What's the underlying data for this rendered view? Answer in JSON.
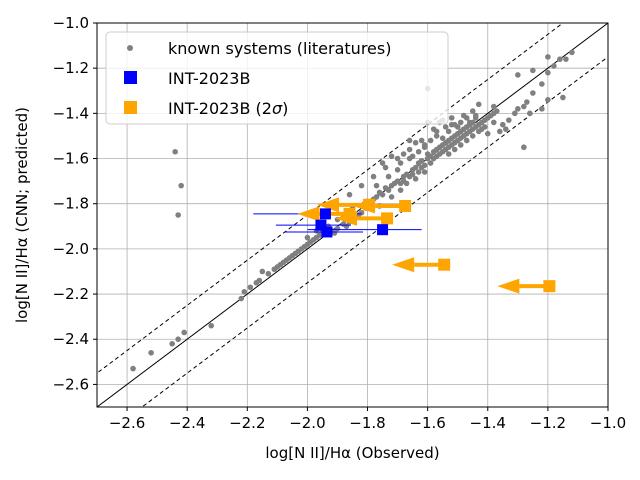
{
  "chart_data": {
    "type": "scatter",
    "xlabel": "log[N II]/Hα (Observed)",
    "ylabel": "log[N II]/Hα (CNN; predicted)",
    "xlim": [
      -2.7,
      -1.0
    ],
    "ylim": [
      -2.7,
      -1.0
    ],
    "xticks": [
      -2.6,
      -2.4,
      -2.2,
      -2.0,
      -1.8,
      -1.6,
      -1.4,
      -1.2,
      -1.0
    ],
    "yticks": [
      -2.6,
      -2.4,
      -2.2,
      -2.0,
      -1.8,
      -1.6,
      -1.4,
      -1.2,
      -1.0
    ],
    "xtick_labels": [
      "−2.6",
      "−2.4",
      "−2.2",
      "−2.0",
      "−1.8",
      "−1.6",
      "−1.4",
      "−1.2",
      "−1.0"
    ],
    "ytick_labels": [
      "−2.6",
      "−2.4",
      "−2.2",
      "−2.0",
      "−1.8",
      "−1.6",
      "−1.4",
      "−1.2",
      "−1.0"
    ],
    "grid": true,
    "legend_position": "top-left",
    "lines": [
      {
        "style": "solid",
        "offset": 0.0,
        "color": "#000000"
      },
      {
        "style": "dashed",
        "offset": 0.15,
        "color": "#000000"
      },
      {
        "style": "dashed",
        "offset": -0.15,
        "color": "#000000"
      }
    ],
    "series": [
      {
        "name": "known systems (literatures)",
        "marker": "dot",
        "color": "#808080",
        "points": [
          [
            -2.58,
            -2.53
          ],
          [
            -2.52,
            -2.46
          ],
          [
            -2.45,
            -2.42
          ],
          [
            -2.43,
            -2.4
          ],
          [
            -2.41,
            -2.37
          ],
          [
            -2.32,
            -2.34
          ],
          [
            -2.22,
            -2.22
          ],
          [
            -2.21,
            -2.19
          ],
          [
            -2.19,
            -2.17
          ],
          [
            -2.17,
            -2.15
          ],
          [
            -2.16,
            -2.14
          ],
          [
            -2.13,
            -2.11
          ],
          [
            -2.11,
            -2.09
          ],
          [
            -2.09,
            -2.07
          ],
          [
            -2.08,
            -2.06
          ],
          [
            -2.07,
            -2.05
          ],
          [
            -2.06,
            -2.04
          ],
          [
            -2.05,
            -2.03
          ],
          [
            -2.04,
            -2.02
          ],
          [
            -2.03,
            -2.01
          ],
          [
            -2.02,
            -2.0
          ],
          [
            -2.01,
            -1.99
          ],
          [
            -2.0,
            -1.98
          ],
          [
            -1.99,
            -1.97
          ],
          [
            -1.98,
            -1.96
          ],
          [
            -1.97,
            -1.95
          ],
          [
            -1.96,
            -1.94
          ],
          [
            -1.95,
            -1.93
          ],
          [
            -1.94,
            -1.93
          ],
          [
            -1.92,
            -1.92
          ],
          [
            -1.9,
            -1.91
          ],
          [
            -1.88,
            -1.89
          ],
          [
            -1.86,
            -1.88
          ],
          [
            -1.84,
            -1.86
          ],
          [
            -1.82,
            -1.84
          ],
          [
            -1.8,
            -1.82
          ],
          [
            -1.79,
            -1.79
          ],
          [
            -1.78,
            -1.78
          ],
          [
            -1.77,
            -1.77
          ],
          [
            -1.76,
            -1.75
          ],
          [
            -1.75,
            -1.76
          ],
          [
            -1.74,
            -1.73
          ],
          [
            -1.73,
            -1.74
          ],
          [
            -1.72,
            -1.72
          ],
          [
            -1.71,
            -1.71
          ],
          [
            -1.7,
            -1.7
          ],
          [
            -1.69,
            -1.71
          ],
          [
            -1.68,
            -1.68
          ],
          [
            -1.68,
            -1.7
          ],
          [
            -1.67,
            -1.67
          ],
          [
            -1.66,
            -1.68
          ],
          [
            -1.65,
            -1.65
          ],
          [
            -1.65,
            -1.67
          ],
          [
            -1.64,
            -1.64
          ],
          [
            -1.63,
            -1.66
          ],
          [
            -1.63,
            -1.62
          ],
          [
            -1.62,
            -1.64
          ],
          [
            -1.62,
            -1.61
          ],
          [
            -1.61,
            -1.63
          ],
          [
            -1.6,
            -1.6
          ],
          [
            -1.6,
            -1.58
          ],
          [
            -1.59,
            -1.62
          ],
          [
            -1.59,
            -1.59
          ],
          [
            -1.58,
            -1.57
          ],
          [
            -1.58,
            -1.6
          ],
          [
            -1.57,
            -1.56
          ],
          [
            -1.57,
            -1.59
          ],
          [
            -1.56,
            -1.55
          ],
          [
            -1.56,
            -1.58
          ],
          [
            -1.55,
            -1.54
          ],
          [
            -1.55,
            -1.57
          ],
          [
            -1.54,
            -1.53
          ],
          [
            -1.54,
            -1.56
          ],
          [
            -1.53,
            -1.52
          ],
          [
            -1.53,
            -1.55
          ],
          [
            -1.52,
            -1.51
          ],
          [
            -1.52,
            -1.54
          ],
          [
            -1.51,
            -1.5
          ],
          [
            -1.51,
            -1.53
          ],
          [
            -1.5,
            -1.49
          ],
          [
            -1.5,
            -1.52
          ],
          [
            -1.49,
            -1.48
          ],
          [
            -1.49,
            -1.51
          ],
          [
            -1.48,
            -1.47
          ],
          [
            -1.48,
            -1.5
          ],
          [
            -1.47,
            -1.46
          ],
          [
            -1.47,
            -1.49
          ],
          [
            -1.46,
            -1.45
          ],
          [
            -1.46,
            -1.48
          ],
          [
            -1.45,
            -1.44
          ],
          [
            -1.45,
            -1.47
          ],
          [
            -1.44,
            -1.46
          ],
          [
            -1.43,
            -1.45
          ],
          [
            -1.42,
            -1.44
          ],
          [
            -1.41,
            -1.43
          ],
          [
            -1.4,
            -1.42
          ],
          [
            -1.39,
            -1.41
          ],
          [
            -1.38,
            -1.4
          ],
          [
            -1.37,
            -1.39
          ],
          [
            -1.6,
            -1.44
          ],
          [
            -1.55,
            -1.43
          ],
          [
            -1.52,
            -1.42
          ],
          [
            -1.58,
            -1.47
          ],
          [
            -1.62,
            -1.52
          ],
          [
            -1.66,
            -1.56
          ],
          [
            -1.7,
            -1.6
          ],
          [
            -1.74,
            -1.64
          ],
          [
            -1.78,
            -1.68
          ],
          [
            -1.82,
            -1.72
          ],
          [
            -1.86,
            -1.76
          ],
          [
            -1.75,
            -1.62
          ],
          [
            -1.72,
            -1.59
          ],
          [
            -1.68,
            -1.58
          ],
          [
            -1.64,
            -1.53
          ],
          [
            -1.85,
            -1.82
          ],
          [
            -1.88,
            -1.86
          ],
          [
            -1.81,
            -1.8
          ],
          [
            -1.9,
            -1.87
          ],
          [
            -1.93,
            -1.9
          ],
          [
            -1.97,
            -1.92
          ],
          [
            -2.0,
            -1.95
          ],
          [
            -1.55,
            -1.51
          ],
          [
            -1.5,
            -1.46
          ],
          [
            -1.44,
            -1.41
          ],
          [
            -1.42,
            -1.47
          ],
          [
            -1.4,
            -1.49
          ],
          [
            -1.38,
            -1.44
          ],
          [
            -1.36,
            -1.48
          ],
          [
            -1.35,
            -1.45
          ],
          [
            -1.34,
            -1.47
          ],
          [
            -1.33,
            -1.43
          ],
          [
            -1.31,
            -1.4
          ],
          [
            -1.3,
            -1.38
          ],
          [
            -1.28,
            -1.37
          ],
          [
            -1.27,
            -1.35
          ],
          [
            -1.26,
            -1.4
          ],
          [
            -1.25,
            -1.31
          ],
          [
            -1.22,
            -1.27
          ],
          [
            -1.2,
            -1.22
          ],
          [
            -1.18,
            -1.19
          ],
          [
            -1.16,
            -1.16
          ],
          [
            -1.14,
            -1.16
          ],
          [
            -1.12,
            -1.13
          ],
          [
            -1.2,
            -1.15
          ],
          [
            -1.25,
            -1.21
          ],
          [
            -1.3,
            -1.23
          ],
          [
            -1.28,
            -1.55
          ],
          [
            -1.22,
            -1.38
          ],
          [
            -1.2,
            -1.34
          ],
          [
            -1.15,
            -1.33
          ],
          [
            -1.38,
            -1.37
          ],
          [
            -1.43,
            -1.36
          ],
          [
            -1.48,
            -1.41
          ],
          [
            -1.45,
            -1.39
          ],
          [
            -1.47,
            -1.42
          ],
          [
            -1.46,
            -1.44
          ],
          [
            -1.44,
            -1.42
          ],
          [
            -1.53,
            -1.48
          ],
          [
            -1.57,
            -1.5
          ],
          [
            -1.61,
            -1.55
          ],
          [
            -1.65,
            -1.59
          ],
          [
            -1.66,
            -1.52
          ],
          [
            -1.56,
            -1.44
          ],
          [
            -1.52,
            -1.45
          ],
          [
            -1.6,
            -1.29
          ],
          [
            -2.44,
            -1.57
          ],
          [
            -2.42,
            -1.72
          ],
          [
            -2.43,
            -1.85
          ],
          [
            -2.15,
            -2.1
          ],
          [
            -2.1,
            -2.08
          ],
          [
            -1.95,
            -1.92
          ],
          [
            -1.91,
            -1.93
          ],
          [
            -1.87,
            -1.9
          ],
          [
            -1.83,
            -1.85
          ],
          [
            -1.76,
            -1.81
          ],
          [
            -1.72,
            -1.77
          ],
          [
            -1.69,
            -1.74
          ],
          [
            -1.67,
            -1.71
          ],
          [
            -1.64,
            -1.69
          ],
          [
            -1.61,
            -1.66
          ],
          [
            -1.8,
            -1.79
          ],
          [
            -1.77,
            -1.72
          ],
          [
            -1.73,
            -1.68
          ],
          [
            -1.7,
            -1.65
          ],
          [
            -1.69,
            -1.62
          ],
          [
            -1.66,
            -1.6
          ],
          [
            -1.63,
            -1.57
          ],
          [
            -1.61,
            -1.54
          ],
          [
            -1.59,
            -1.52
          ],
          [
            -1.57,
            -1.48
          ],
          [
            -1.54,
            -1.46
          ],
          [
            -1.51,
            -1.45
          ],
          [
            -1.49,
            -1.44
          ],
          [
            -1.53,
            -1.58
          ],
          [
            -1.51,
            -1.56
          ],
          [
            -1.49,
            -1.54
          ],
          [
            -1.47,
            -1.52
          ],
          [
            -1.45,
            -1.5
          ],
          [
            -1.43,
            -1.48
          ],
          [
            -1.41,
            -1.46
          ]
        ]
      },
      {
        "name": "INT-2023B",
        "marker": "square",
        "color": "#0000ff",
        "points": [
          {
            "x": -1.94,
            "y": -1.845,
            "xerr": [
              0.24,
              0.12
            ]
          },
          {
            "x": -1.955,
            "y": -1.895,
            "xerr": [
              0.15,
              0.1
            ]
          },
          {
            "x": -1.935,
            "y": -1.925,
            "xerr": [
              0.14,
              0.12
            ]
          },
          {
            "x": -1.75,
            "y": -1.915,
            "xerr": [
              0.25,
              0.13
            ]
          }
        ]
      },
      {
        "name": "INT-2023B (2σ)",
        "legend_label": "INT-2023B (2",
        "legend_symbol": "σ",
        "legend_suffix": ")",
        "marker": "square",
        "color": "#ffa500",
        "upper_limit_arrows": true,
        "points": [
          {
            "x": -1.675,
            "y": -1.81
          },
          {
            "x": -1.735,
            "y": -1.865
          },
          {
            "x": -1.795,
            "y": -1.805
          },
          {
            "x": -1.86,
            "y": -1.845
          },
          {
            "x": -1.545,
            "y": -2.07
          },
          {
            "x": -1.195,
            "y": -2.165
          }
        ]
      }
    ]
  }
}
